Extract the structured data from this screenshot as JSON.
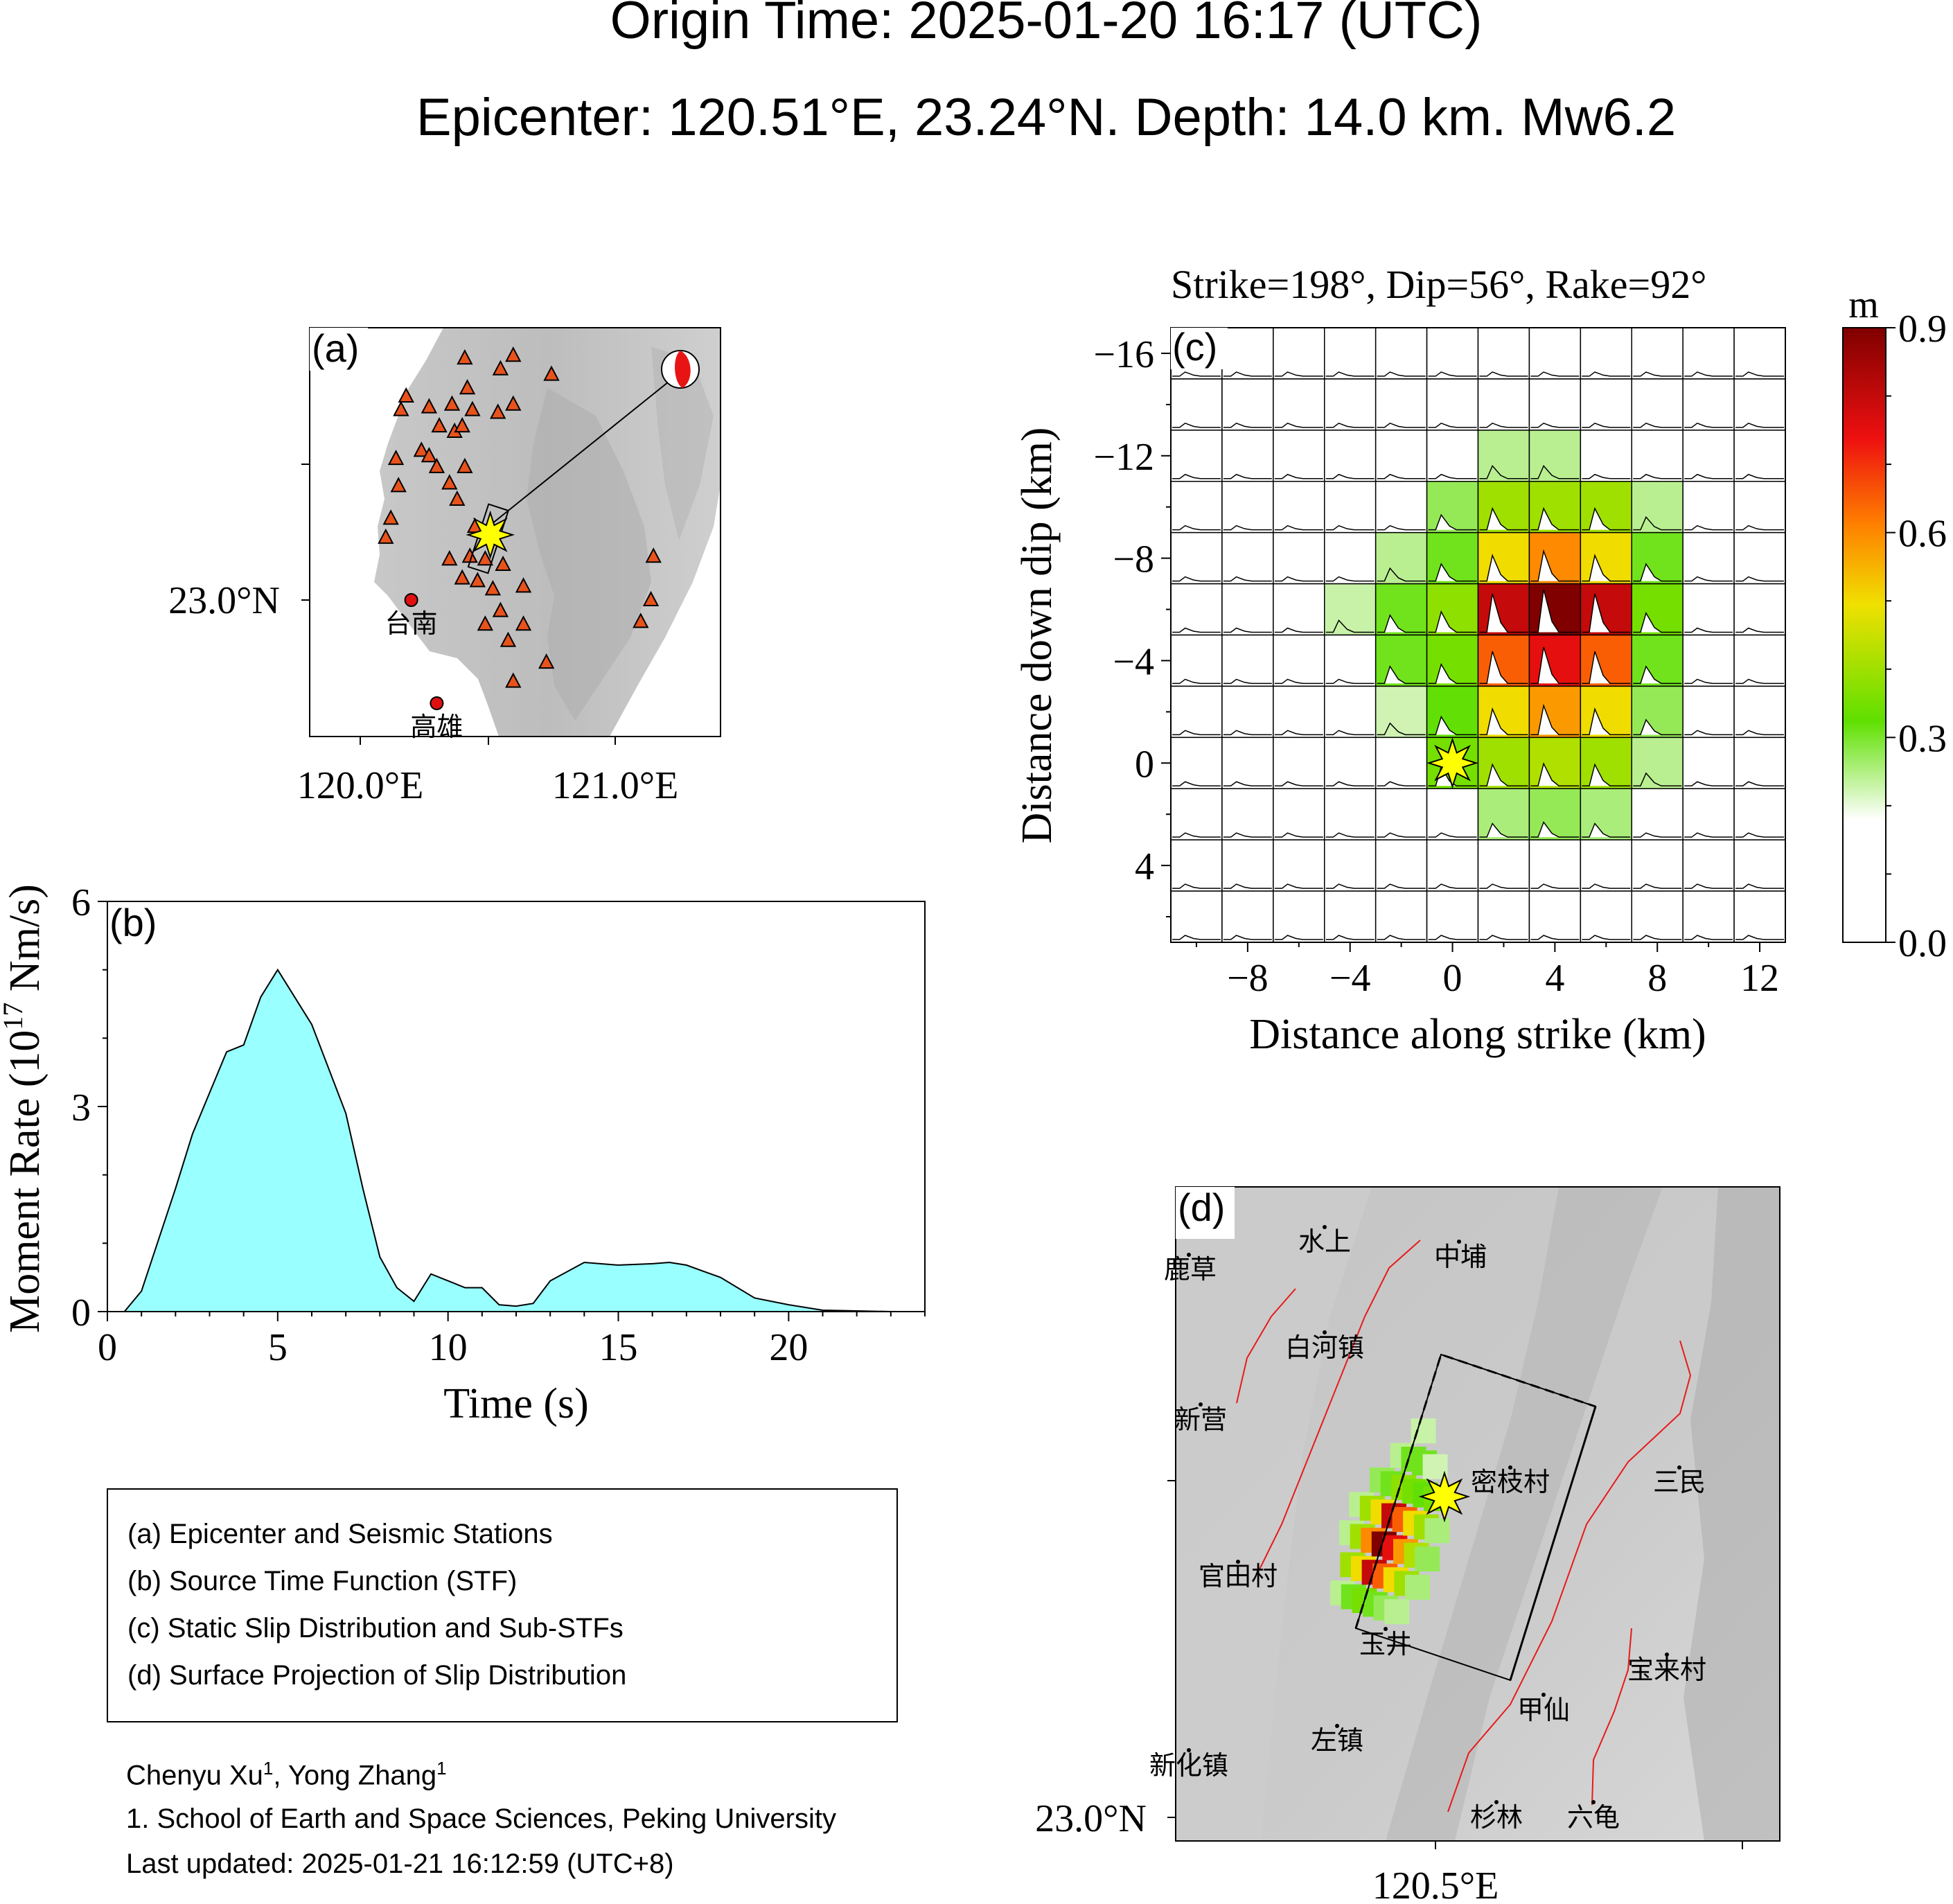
{
  "header": {
    "origin_time": "Origin Time: 2025-01-20 16:17 (UTC)",
    "epicenter": "Epicenter: 120.51°E, 23.24°N. Depth: 14.0 km. Mw6.2"
  },
  "panel_labels": {
    "a": "(a)",
    "b": "(b)",
    "c": "(c)",
    "d": "(d)"
  },
  "panel_a": {
    "lat_label": "23.0°N",
    "lon_labels": [
      "120.0°E",
      "121.0°E"
    ],
    "cities": [
      {
        "name": "台南",
        "lon": 120.2,
        "lat": 23.0
      },
      {
        "name": "高雄",
        "lon": 120.3,
        "lat": 22.62
      }
    ],
    "epicenter": {
      "lon": 120.51,
      "lat": 23.24
    },
    "stations": [
      [
        120.41,
        23.89
      ],
      [
        120.6,
        23.9
      ],
      [
        120.55,
        23.85
      ],
      [
        120.75,
        23.83
      ],
      [
        120.42,
        23.78
      ],
      [
        120.18,
        23.75
      ],
      [
        120.16,
        23.7
      ],
      [
        120.27,
        23.71
      ],
      [
        120.36,
        23.72
      ],
      [
        120.44,
        23.7
      ],
      [
        120.54,
        23.69
      ],
      [
        120.6,
        23.72
      ],
      [
        120.31,
        23.64
      ],
      [
        120.37,
        23.62
      ],
      [
        120.4,
        23.64
      ],
      [
        120.24,
        23.55
      ],
      [
        120.27,
        23.53
      ],
      [
        120.14,
        23.52
      ],
      [
        120.3,
        23.49
      ],
      [
        120.41,
        23.49
      ],
      [
        120.35,
        23.43
      ],
      [
        120.15,
        23.42
      ],
      [
        120.38,
        23.37
      ],
      [
        120.12,
        23.3
      ],
      [
        120.45,
        23.27
      ],
      [
        120.1,
        23.23
      ],
      [
        120.35,
        23.15
      ],
      [
        120.43,
        23.16
      ],
      [
        120.49,
        23.15
      ],
      [
        120.56,
        23.13
      ],
      [
        120.4,
        23.08
      ],
      [
        120.46,
        23.07
      ],
      [
        120.52,
        23.04
      ],
      [
        120.64,
        23.05
      ],
      [
        120.55,
        22.96
      ],
      [
        120.49,
        22.91
      ],
      [
        120.64,
        22.91
      ],
      [
        120.58,
        22.85
      ],
      [
        120.73,
        22.77
      ],
      [
        120.6,
        22.7
      ],
      [
        121.15,
        23.16
      ],
      [
        121.14,
        23.0
      ],
      [
        121.1,
        22.92
      ]
    ]
  },
  "panel_b_text": {
    "ylabel": "Moment Rate (10",
    "ylabel_sup": "17",
    "ylabel_tail": " Nm/s)",
    "xlabel": "Time (s)",
    "yticks": [
      "0",
      "3",
      "6"
    ],
    "xticks": [
      "0",
      "5",
      "10",
      "15",
      "20"
    ]
  },
  "panel_c_text": {
    "title": "Strike=198°, Dip=56°, Rake=92°",
    "xlabel": "Distance along strike (km)",
    "ylabel": "Distance down dip (km)",
    "xticks": [
      "−8",
      "−4",
      "0",
      "4",
      "8",
      "12"
    ],
    "yticks": [
      "−16",
      "−12",
      "−8",
      "−4",
      "0",
      "4"
    ],
    "colorbar_unit": "m",
    "colorbar_ticks": [
      "0.0",
      "0.3",
      "0.6",
      "0.9"
    ]
  },
  "panel_d": {
    "lat_label": "23.0°N",
    "lon_label": "120.5°E",
    "places": [
      {
        "name": "鹿草"
      },
      {
        "name": "水上"
      },
      {
        "name": "中埔"
      },
      {
        "name": "白河镇"
      },
      {
        "name": "新营"
      },
      {
        "name": "密枝村"
      },
      {
        "name": "三民"
      },
      {
        "name": "官田村"
      },
      {
        "name": "玉井"
      },
      {
        "name": "宝来村"
      },
      {
        "name": "甲仙"
      },
      {
        "name": "左镇"
      },
      {
        "name": "新化镇"
      },
      {
        "name": "杉林"
      },
      {
        "name": "六龟"
      }
    ]
  },
  "legend": [
    "(a) Epicenter and Seismic Stations",
    "(b) Source Time Function (STF)",
    "(c) Static Slip Distribution and Sub-STFs",
    "(d) Surface Projection of Slip Distribution"
  ],
  "credits": {
    "authors_1": "Chenyu Xu",
    "authors_sup1": "1",
    "authors_sep": ", Yong Zhang",
    "authors_sup2": "1",
    "affiliation": "1. School of Earth and Space Sciences, Peking University",
    "updated": "Last updated: 2025-01-21 16:12:59 (UTC+8)"
  },
  "colors": {
    "stf_fill": "#99ffff",
    "station": "#e8531c",
    "epicenter_star": "#ffff00",
    "fault_trace": "#e81a1a",
    "city": "#e01010",
    "colormap": [
      "#ffffff",
      "#5fe000",
      "#f0e000",
      "#ff8000",
      "#ee1010",
      "#800000"
    ]
  },
  "chart_data": [
    {
      "type": "area",
      "title": "",
      "xlabel": "Time (s)",
      "ylabel": "Moment Rate (10^17 Nm/s)",
      "xlim": [
        0,
        24
      ],
      "ylim": [
        0,
        6
      ],
      "x": [
        0.5,
        1,
        2,
        2.5,
        3,
        3.5,
        4,
        4.5,
        5,
        6,
        7,
        7.5,
        8,
        8.5,
        9,
        9.5,
        10,
        10.5,
        11,
        11.5,
        12,
        12.5,
        13,
        14,
        15,
        16,
        16.5,
        17,
        18,
        19,
        20,
        21,
        22,
        23
      ],
      "y": [
        0.0,
        0.3,
        1.8,
        2.6,
        3.2,
        3.8,
        3.9,
        4.6,
        5.0,
        4.2,
        2.9,
        1.8,
        0.8,
        0.35,
        0.15,
        0.55,
        0.45,
        0.35,
        0.35,
        0.1,
        0.08,
        0.12,
        0.45,
        0.72,
        0.68,
        0.7,
        0.72,
        0.68,
        0.5,
        0.2,
        0.1,
        0.02,
        0.01,
        0.0
      ]
    },
    {
      "type": "heatmap",
      "title": "Strike=198°, Dip=56°, Rake=92°",
      "xlabel": "Distance along strike (km)",
      "ylabel": "Distance down dip (km)",
      "units": "m",
      "clim": [
        0.0,
        0.9
      ],
      "xlim": [
        -11,
        13
      ],
      "ylim": [
        -17,
        7
      ],
      "x_centers": [
        -10,
        -8,
        -6,
        -4,
        -2,
        0,
        2,
        4,
        6,
        8,
        10,
        12
      ],
      "y_centers": [
        -16,
        -14,
        -12,
        -10,
        -8,
        -6,
        -4,
        -2,
        0,
        2,
        4,
        6
      ],
      "slip": [
        [
          0,
          0,
          0,
          0,
          0,
          0,
          0,
          0,
          0,
          0,
          0,
          0
        ],
        [
          0,
          0,
          0,
          0,
          0,
          0,
          0,
          0,
          0,
          0,
          0,
          0
        ],
        [
          0,
          0,
          0,
          0,
          0,
          0,
          0.2,
          0.2,
          0,
          0,
          0,
          0
        ],
        [
          0,
          0,
          0,
          0,
          0,
          0.25,
          0.4,
          0.4,
          0.4,
          0.2,
          0,
          0
        ],
        [
          0,
          0,
          0,
          0,
          0.2,
          0.3,
          0.5,
          0.6,
          0.5,
          0.3,
          0,
          0
        ],
        [
          0,
          0,
          0,
          0.18,
          0.3,
          0.38,
          0.8,
          0.9,
          0.8,
          0.35,
          0,
          0
        ],
        [
          0,
          0,
          0,
          0,
          0.3,
          0.35,
          0.65,
          0.75,
          0.65,
          0.3,
          0,
          0
        ],
        [
          0,
          0,
          0,
          0,
          0.17,
          0.32,
          0.5,
          0.58,
          0.5,
          0.25,
          0,
          0
        ],
        [
          0,
          0,
          0,
          0,
          0,
          0.35,
          0.4,
          0.42,
          0.4,
          0.2,
          0,
          0
        ],
        [
          0,
          0,
          0,
          0,
          0,
          0,
          0.22,
          0.25,
          0.22,
          0,
          0,
          0
        ],
        [
          0,
          0,
          0,
          0,
          0,
          0,
          0,
          0,
          0,
          0,
          0,
          0
        ],
        [
          0,
          0,
          0,
          0,
          0,
          0,
          0,
          0,
          0,
          0,
          0,
          0
        ]
      ],
      "hypocenter": [
        0,
        0
      ]
    }
  ]
}
